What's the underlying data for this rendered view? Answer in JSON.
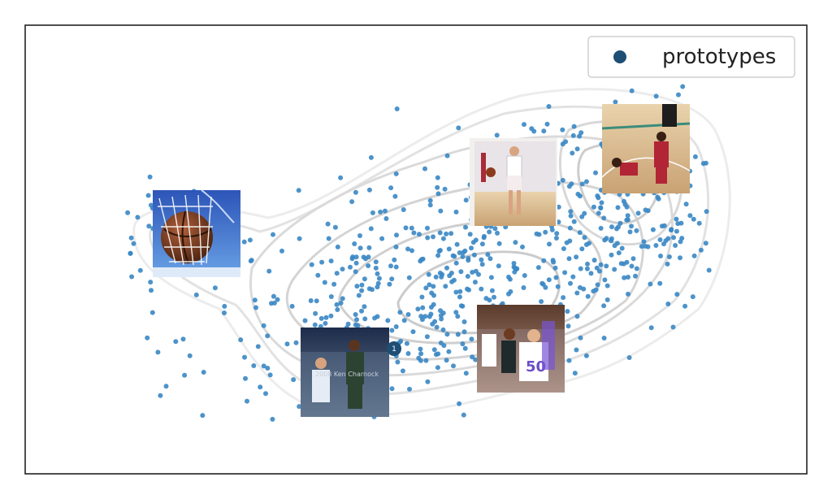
{
  "chart_data": {
    "type": "scatter",
    "title": "",
    "xlabel": "",
    "ylabel": "",
    "axes_ticks": "none",
    "grid": false,
    "legend": {
      "placement": "top-right",
      "entries": [
        "prototypes"
      ]
    },
    "xlim": [
      0,
      10
    ],
    "ylim": [
      0,
      10
    ],
    "point_color": "#3a87c4",
    "prototype_color": "#1f4e74",
    "background_density_contours": true,
    "clusters": [
      {
        "center": [
          1.8,
          5.3
        ],
        "spread": [
          0.55,
          0.65
        ],
        "count": 55
      },
      {
        "center": [
          5.5,
          4.3
        ],
        "spread": [
          1.7,
          1.25
        ],
        "count": 520
      },
      {
        "center": [
          7.9,
          6.3
        ],
        "spread": [
          0.9,
          1.3
        ],
        "count": 190
      },
      {
        "center": [
          4.1,
          2.9
        ],
        "spread": [
          0.55,
          0.55
        ],
        "count": 35
      }
    ],
    "prototypes": [
      {
        "id": "proto-hoop-ball",
        "x": 2.2,
        "y": 5.3,
        "label": "",
        "description": "basketball dropping through net"
      },
      {
        "id": "proto-player-dribbling",
        "x": 6.2,
        "y": 6.3,
        "label": "",
        "description": "player dribbling on court"
      },
      {
        "id": "proto-court-players",
        "x": 7.9,
        "y": 7.4,
        "label": "",
        "description": "players on hardwood court"
      },
      {
        "id": "proto-shot-block",
        "x": 4.1,
        "y": 2.4,
        "label": "1",
        "description": "jump shot over defender"
      },
      {
        "id": "proto-rebound",
        "x": 6.3,
        "y": 2.7,
        "label": "",
        "description": "women's basketball rebound"
      }
    ]
  }
}
